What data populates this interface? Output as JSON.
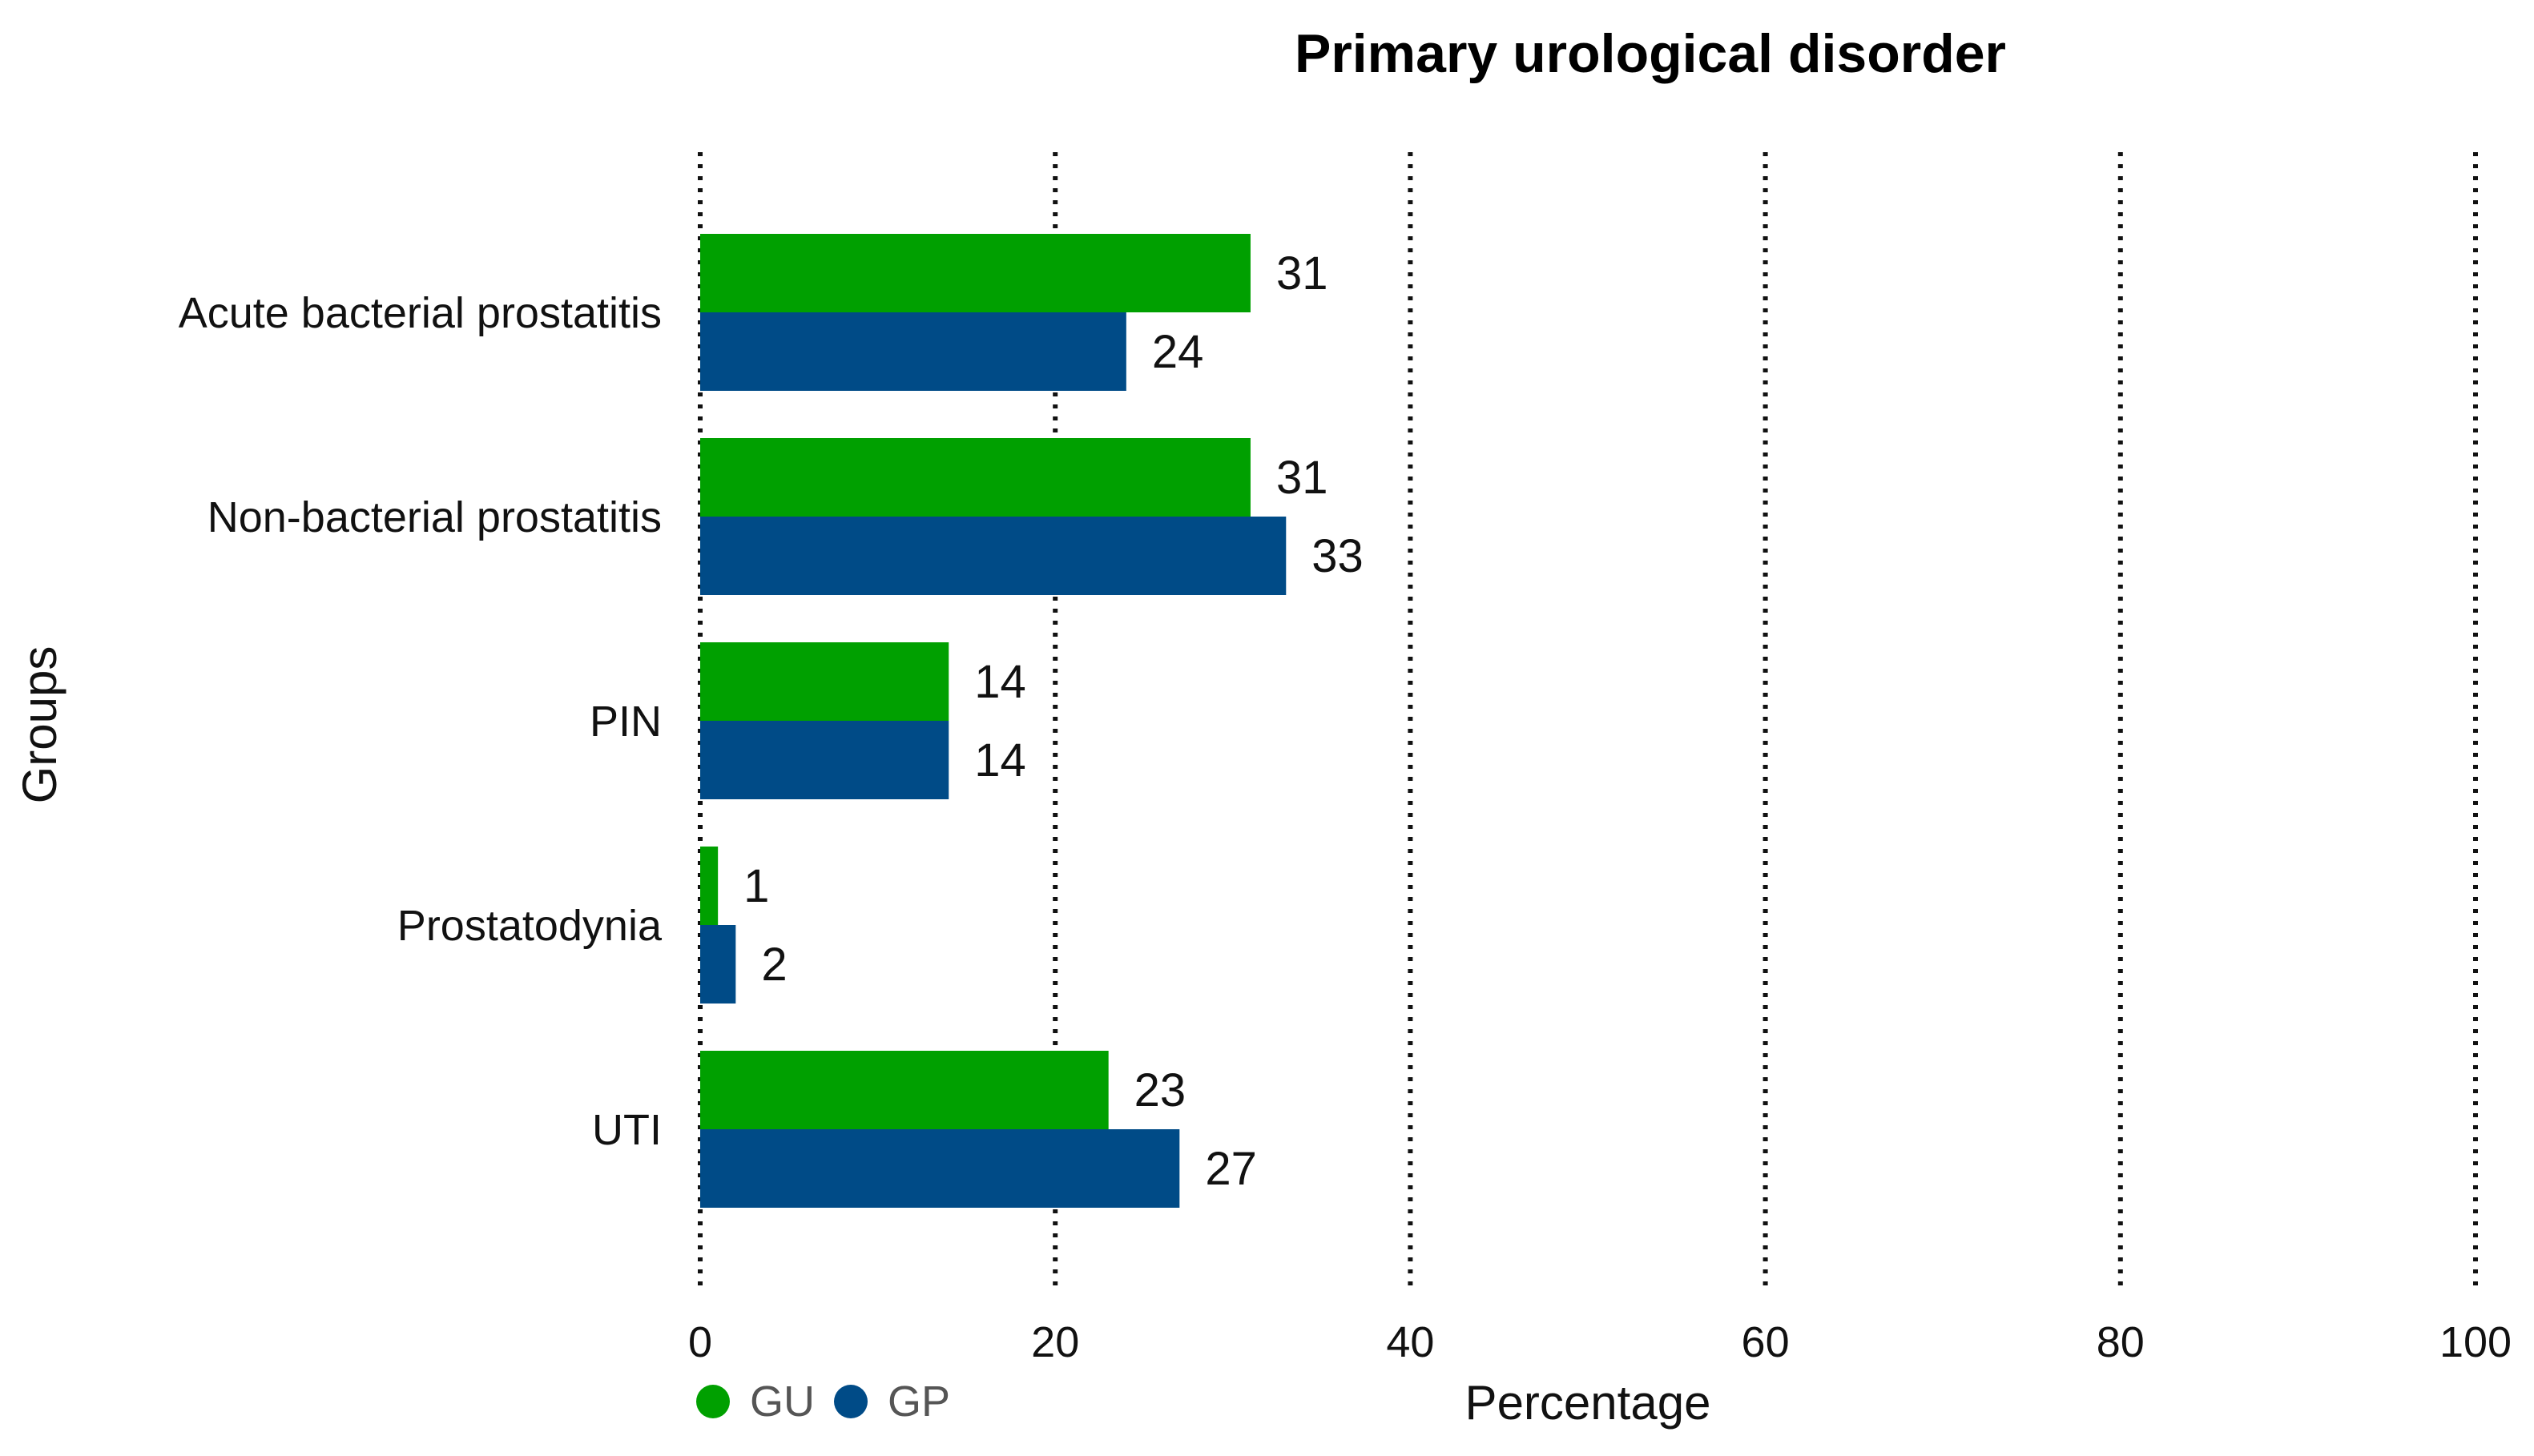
{
  "chart_data": {
    "type": "bar",
    "orientation": "horizontal",
    "title": "Primary urological disorder",
    "xlabel": "Percentage",
    "ylabel": "Groups",
    "xlim": [
      0,
      100
    ],
    "xticks": [
      0,
      20,
      40,
      60,
      80,
      100
    ],
    "grid": "vertical dotted",
    "categories": [
      "Acute bacterial prostatitis",
      "Non-bacterial prostatitis",
      "PIN",
      "Prostatodynia",
      "UTI"
    ],
    "series": [
      {
        "name": "GU",
        "color": "#00A000",
        "values": [
          31,
          31,
          14,
          1,
          23
        ]
      },
      {
        "name": "GP",
        "color": "#004B87",
        "values": [
          24,
          33,
          14,
          2,
          27
        ]
      }
    ],
    "legend_position": "bottom-left"
  }
}
